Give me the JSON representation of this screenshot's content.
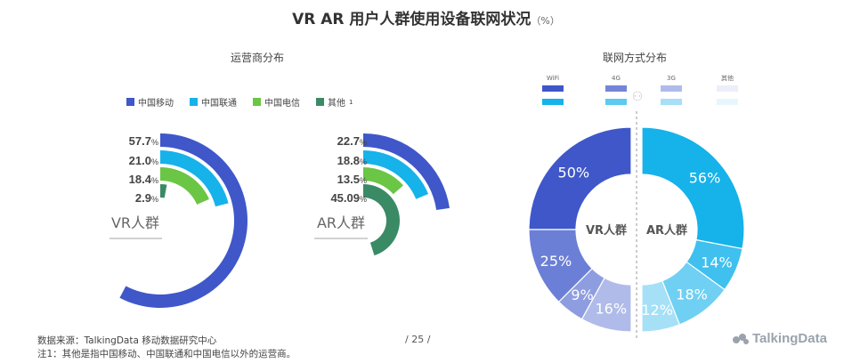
{
  "title": "VR  AR  用户人群使用设备联网状况",
  "title_unit": "（%）",
  "left_subtitle": "运营商分布",
  "right_subtitle": "联网方式分布",
  "legend": [
    {
      "label": "中国移动",
      "color": "#3f57c9"
    },
    {
      "label": "中国联通",
      "color": "#16b2ea"
    },
    {
      "label": "中国电信",
      "color": "#6ac644"
    },
    {
      "label": "其他",
      "sup": "1",
      "color": "#3a8a66"
    }
  ],
  "net_legend": {
    "headers": [
      "WiFi",
      "4G",
      "3G",
      "其他"
    ],
    "vr_colors": [
      "#3f57c9",
      "#7485d8",
      "#b0bbea",
      "#eceef9"
    ],
    "ar_colors": [
      "#16b2ea",
      "#5ccaf1",
      "#a5e0f7",
      "#e7f6fd"
    ]
  },
  "footer": {
    "source": "数据来源：TalkingData 移动数据研究中心",
    "note": "注1：其他是指中国移动、中国联通和中国电信以外的运营商。",
    "page": "/  25  /",
    "logo": "TalkingData"
  },
  "chart_data": [
    {
      "type": "radial-bar",
      "name": "VR人群",
      "categories": [
        "中国移动",
        "中国联通",
        "中国电信",
        "其他"
      ],
      "values": [
        57.7,
        21.0,
        18.4,
        2.9
      ],
      "labels": [
        "57.7",
        "21.0",
        "18.4",
        "2.9"
      ],
      "unit": "%",
      "colors": [
        "#3f57c9",
        "#16b2ea",
        "#6ac644",
        "#3a8a66"
      ]
    },
    {
      "type": "radial-bar",
      "name": "AR人群",
      "categories": [
        "中国移动",
        "中国联通",
        "中国电信",
        "其他"
      ],
      "values": [
        22.7,
        18.8,
        13.5,
        45.09
      ],
      "labels": [
        "22.7",
        "18.8",
        "13.5",
        "45.09"
      ],
      "unit": "%",
      "colors": [
        "#3f57c9",
        "#16b2ea",
        "#6ac644",
        "#3a8a66"
      ]
    },
    {
      "type": "pie",
      "name": "VR人群",
      "categories": [
        "WiFi",
        "4G",
        "3G",
        "其他"
      ],
      "values": [
        50,
        25,
        9,
        16
      ],
      "labels": [
        "50%",
        "25%",
        "9%",
        "16%"
      ],
      "colors": [
        "#3f57c9",
        "#6b7fd6",
        "#8e9de0",
        "#b0bbea"
      ]
    },
    {
      "type": "pie",
      "name": "AR人群",
      "categories": [
        "WiFi",
        "4G",
        "3G",
        "其他"
      ],
      "values": [
        56,
        14,
        18,
        12
      ],
      "labels": [
        "56%",
        "14%",
        "18%",
        "12%"
      ],
      "colors": [
        "#16b2ea",
        "#3fc0ef",
        "#6fd0f3",
        "#a5e0f7"
      ]
    }
  ]
}
